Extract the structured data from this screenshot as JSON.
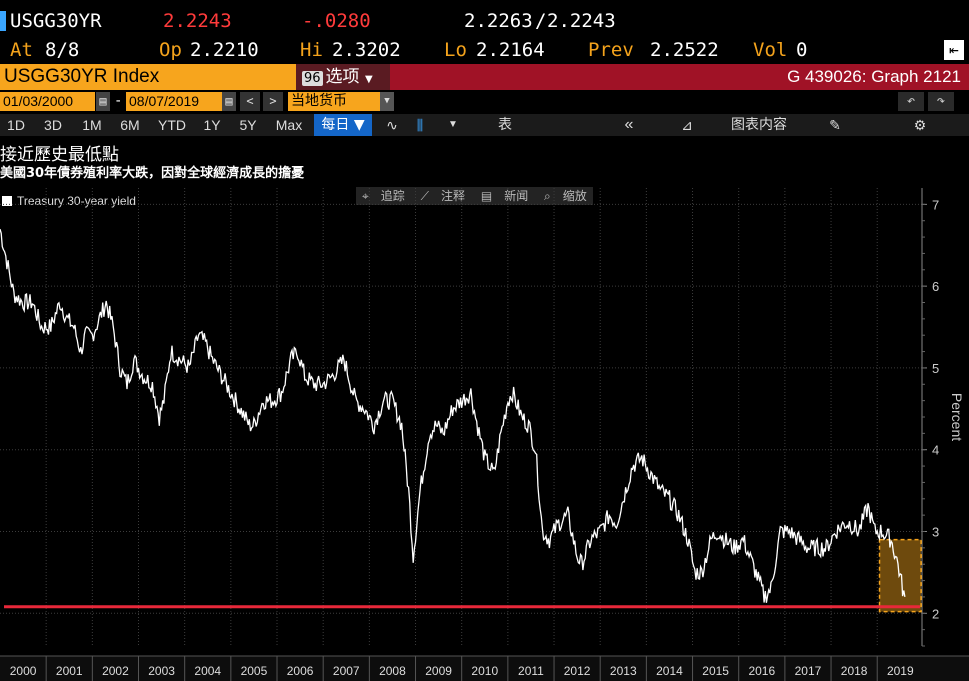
{
  "quote": {
    "ticker": "USGG30YR",
    "last": "2.2243",
    "change": "-.0280",
    "bid_ask_bid": "2.2263",
    "bid_ask_sep": "/",
    "bid_ask_ask": "2.2243",
    "at_label": "At",
    "at_value": "8/8",
    "open_label": "Op",
    "open_value": "2.2210",
    "high_label": "Hi",
    "high_value": "2.3202",
    "low_label": "Lo",
    "low_value": "2.2164",
    "prev_label": "Prev",
    "prev_value": "2.2522",
    "vol_label": "Vol",
    "vol_value": "0"
  },
  "titlebar": {
    "security": "USGG30YR Index",
    "options_num": "96",
    "options_label": "选项",
    "graph_id": "G 439026: Graph 2121"
  },
  "daterange": {
    "start": "01/03/2000",
    "sep": "-",
    "end": "08/07/2019",
    "currency": "当地货币"
  },
  "toolbar": {
    "periods": [
      "1D",
      "3D",
      "1M",
      "6M",
      "YTD",
      "1Y",
      "5Y",
      "Max"
    ],
    "frequency": "每日",
    "table_label": "表",
    "chart_content_label": "图表内容"
  },
  "annotation_bar": {
    "track": "追踪",
    "annotate": "注释",
    "news": "新闻",
    "zoom": "缩放"
  },
  "chart_data": {
    "type": "line",
    "title": "接近歷史最低點",
    "subtitle": "美國30年債券殖利率大跌，因對全球經濟成長的擔憂",
    "ylabel": "Percent",
    "xlabel": "",
    "ylim": [
      1.6,
      7.2
    ],
    "yticks": [
      2,
      3,
      4,
      5,
      6,
      7
    ],
    "xticks": [
      "2000",
      "2001",
      "2002",
      "2003",
      "2004",
      "2005",
      "2006",
      "2007",
      "2008",
      "2009",
      "2010",
      "2011",
      "2012",
      "2013",
      "2014",
      "2015",
      "2016",
      "2017",
      "2018",
      "2019"
    ],
    "legend": "top-left",
    "grid": true,
    "series": [
      {
        "name": "Treasury 30-year yield",
        "color": "#ffffff",
        "x": [
          2000.0,
          2000.15,
          2000.3,
          2000.5,
          2000.7,
          2000.9,
          2001.1,
          2001.3,
          2001.45,
          2001.6,
          2001.75,
          2001.85,
          2002.0,
          2002.3,
          2002.45,
          2002.6,
          2002.75,
          2002.9,
          2003.1,
          2003.3,
          2003.45,
          2003.55,
          2003.7,
          2003.9,
          2004.1,
          2004.3,
          2004.45,
          2004.6,
          2004.8,
          2005.0,
          2005.2,
          2005.4,
          2005.5,
          2005.7,
          2005.9,
          2006.1,
          2006.3,
          2006.45,
          2006.6,
          2006.8,
          2007.0,
          2007.2,
          2007.45,
          2007.7,
          2007.9,
          2008.1,
          2008.3,
          2008.5,
          2008.7,
          2008.85,
          2008.95,
          2009.1,
          2009.3,
          2009.45,
          2009.6,
          2009.8,
          2010.0,
          2010.2,
          2010.3,
          2010.5,
          2010.7,
          2010.85,
          2011.0,
          2011.1,
          2011.3,
          2011.45,
          2011.6,
          2011.75,
          2011.9,
          2012.1,
          2012.3,
          2012.5,
          2012.6,
          2012.8,
          2013.0,
          2013.2,
          2013.35,
          2013.55,
          2013.7,
          2013.9,
          2014.1,
          2014.3,
          2014.5,
          2014.7,
          2014.9,
          2015.05,
          2015.2,
          2015.4,
          2015.55,
          2015.7,
          2015.9,
          2016.1,
          2016.3,
          2016.5,
          2016.55,
          2016.7,
          2016.9,
          2017.1,
          2017.3,
          2017.5,
          2017.7,
          2017.9,
          2018.1,
          2018.3,
          2018.4,
          2018.6,
          2018.8,
          2018.95,
          2019.1,
          2019.3,
          2019.45,
          2019.55,
          2019.6
        ],
        "values": [
          6.7,
          6.3,
          5.9,
          5.8,
          5.8,
          5.5,
          5.5,
          5.8,
          5.6,
          5.5,
          5.2,
          5.4,
          5.4,
          5.8,
          5.5,
          5.0,
          4.8,
          5.1,
          4.9,
          4.8,
          4.4,
          4.6,
          5.2,
          5.1,
          5.0,
          5.4,
          5.3,
          5.1,
          4.9,
          4.7,
          4.5,
          4.3,
          4.3,
          4.6,
          4.6,
          4.7,
          5.1,
          5.2,
          4.9,
          4.8,
          4.8,
          4.9,
          5.1,
          4.6,
          4.5,
          4.3,
          4.6,
          4.6,
          4.3,
          3.5,
          2.7,
          3.5,
          4.2,
          4.3,
          4.2,
          4.5,
          4.6,
          4.7,
          4.4,
          3.9,
          3.7,
          4.2,
          4.6,
          4.7,
          4.4,
          4.3,
          4.0,
          3.0,
          2.9,
          3.1,
          3.2,
          2.7,
          2.6,
          2.9,
          3.0,
          3.2,
          3.1,
          3.5,
          3.8,
          3.9,
          3.7,
          3.5,
          3.4,
          3.2,
          2.9,
          2.5,
          2.5,
          2.9,
          3.0,
          2.9,
          2.8,
          2.9,
          2.6,
          2.3,
          2.2,
          2.3,
          3.0,
          3.0,
          2.9,
          2.8,
          2.8,
          2.8,
          3.0,
          3.1,
          3.1,
          3.0,
          3.3,
          3.0,
          3.0,
          2.9,
          2.6,
          2.3,
          2.2
        ]
      }
    ],
    "annotations": [
      {
        "type": "hline",
        "value": 2.08,
        "color": "#e8283a"
      },
      {
        "type": "highlight",
        "x_start": 2019.05,
        "x_end": 2019.95,
        "y_start": 2.02,
        "y_end": 2.9,
        "color": "#f4a31c"
      }
    ]
  }
}
